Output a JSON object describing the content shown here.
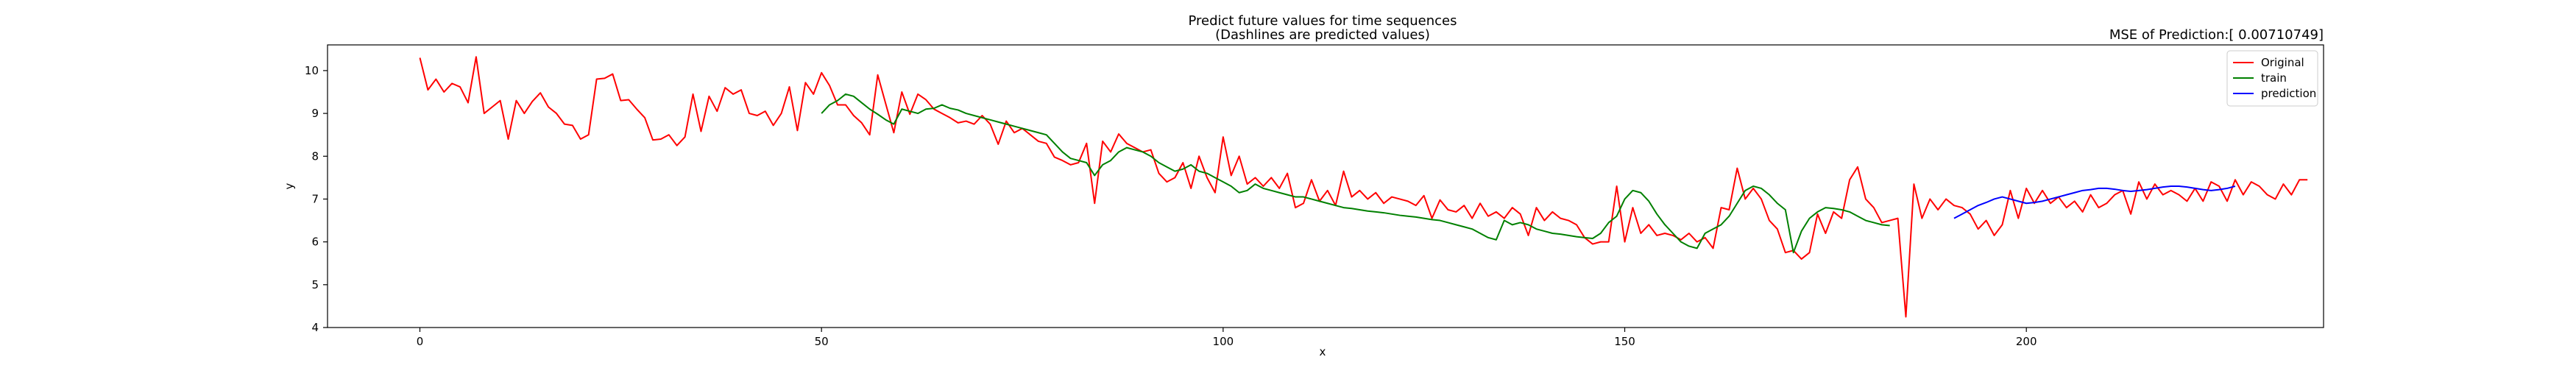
{
  "chart_data": {
    "type": "line",
    "title": "Predict future values for time sequences",
    "subtitle": "(Dashlines are predicted values)",
    "annotation": "MSE of Prediction:[ 0.00710749]",
    "xlabel": "x",
    "ylabel": "y",
    "xlim": [
      -11.5,
      237
    ],
    "ylim": [
      4,
      10.6
    ],
    "xticks": [
      0,
      50,
      100,
      150,
      200
    ],
    "yticks": [
      4,
      5,
      6,
      7,
      8,
      9,
      10
    ],
    "grid": false,
    "legend_position": "top-right",
    "series": [
      {
        "name": "Original",
        "color": "#ff0000",
        "x_start": 0,
        "values": [
          10.3,
          9.55,
          9.8,
          9.5,
          9.7,
          9.62,
          9.25,
          10.32,
          9.0,
          9.15,
          9.3,
          8.4,
          9.3,
          9.0,
          9.28,
          9.48,
          9.15,
          9.0,
          8.75,
          8.72,
          8.4,
          8.5,
          9.8,
          9.82,
          9.92,
          9.3,
          9.32,
          9.1,
          8.9,
          8.38,
          8.4,
          8.5,
          8.25,
          8.45,
          9.45,
          8.58,
          9.4,
          9.05,
          9.6,
          9.45,
          9.55,
          9.0,
          8.95,
          9.05,
          8.72,
          9.0,
          9.62,
          8.6,
          9.72,
          9.45,
          9.95,
          9.65,
          9.2,
          9.2,
          8.95,
          8.78,
          8.5,
          9.9,
          9.22,
          8.55,
          9.5,
          8.98,
          9.45,
          9.32,
          9.1,
          9.0,
          8.9,
          8.78,
          8.82,
          8.75,
          8.95,
          8.75,
          8.28,
          8.82,
          8.55,
          8.65,
          8.5,
          8.35,
          8.3,
          7.98,
          7.9,
          7.8,
          7.85,
          8.3,
          6.9,
          8.35,
          8.1,
          8.52,
          8.3,
          8.2,
          8.1,
          8.15,
          7.6,
          7.4,
          7.5,
          7.85,
          7.25,
          8.0,
          7.5,
          7.15,
          8.45,
          7.55,
          8.0,
          7.35,
          7.5,
          7.3,
          7.5,
          7.25,
          7.6,
          6.8,
          6.9,
          7.45,
          6.95,
          7.2,
          6.85,
          7.65,
          7.05,
          7.2,
          7.0,
          7.15,
          6.9,
          7.05,
          7.0,
          6.95,
          6.85,
          7.08,
          6.55,
          6.98,
          6.75,
          6.7,
          6.85,
          6.55,
          6.9,
          6.6,
          6.7,
          6.55,
          6.8,
          6.65,
          6.15,
          6.8,
          6.5,
          6.7,
          6.55,
          6.5,
          6.4,
          6.1,
          5.95,
          6.0,
          6.0,
          7.3,
          6.0,
          6.8,
          6.2,
          6.4,
          6.15,
          6.2,
          6.15,
          6.05,
          6.2,
          6.0,
          6.1,
          5.85,
          6.8,
          6.75,
          7.72,
          7.0,
          7.25,
          7.0,
          6.5,
          6.3,
          5.75,
          5.8,
          5.6,
          5.75,
          6.65,
          6.2,
          6.7,
          6.55,
          7.45,
          7.75,
          7.0,
          6.8,
          6.45,
          6.5,
          6.55,
          4.25,
          7.35,
          6.55,
          7.0,
          6.75,
          7.0,
          6.85,
          6.8,
          6.65,
          6.3,
          6.5,
          6.15,
          6.4,
          7.2,
          6.55,
          7.25,
          6.9,
          7.2,
          6.9,
          7.05,
          6.8,
          6.95,
          6.7,
          7.1,
          6.8,
          6.9,
          7.1,
          7.2,
          6.65,
          7.4,
          7.0,
          7.35,
          7.1,
          7.2,
          7.1,
          6.95,
          7.25,
          6.95,
          7.4,
          7.3,
          6.95,
          7.45,
          7.1,
          7.4,
          7.3,
          7.1,
          7.0,
          7.35,
          7.1,
          7.45,
          7.45
        ]
      },
      {
        "name": "train",
        "color": "#008000",
        "x_start": 50,
        "values": [
          9.0,
          9.2,
          9.3,
          9.45,
          9.4,
          9.25,
          9.1,
          8.98,
          8.85,
          8.75,
          9.1,
          9.05,
          9.0,
          9.1,
          9.12,
          9.2,
          9.12,
          9.08,
          9.0,
          8.95,
          8.9,
          8.85,
          8.8,
          8.75,
          8.7,
          8.65,
          8.6,
          8.55,
          8.5,
          8.3,
          8.1,
          7.95,
          7.9,
          7.85,
          7.55,
          7.8,
          7.9,
          8.1,
          8.2,
          8.15,
          8.1,
          8.0,
          7.85,
          7.75,
          7.65,
          7.7,
          7.8,
          7.65,
          7.6,
          7.5,
          7.4,
          7.3,
          7.15,
          7.2,
          7.35,
          7.25,
          7.2,
          7.15,
          7.1,
          7.05,
          7.05,
          7.0,
          6.95,
          6.9,
          6.85,
          6.8,
          6.78,
          6.75,
          6.72,
          6.7,
          6.68,
          6.65,
          6.62,
          6.6,
          6.58,
          6.55,
          6.52,
          6.5,
          6.45,
          6.4,
          6.35,
          6.3,
          6.2,
          6.1,
          6.05,
          6.5,
          6.4,
          6.45,
          6.4,
          6.3,
          6.25,
          6.2,
          6.18,
          6.15,
          6.12,
          6.1,
          6.08,
          6.2,
          6.45,
          6.6,
          7.0,
          7.2,
          7.15,
          6.95,
          6.65,
          6.4,
          6.2,
          6.0,
          5.9,
          5.85,
          6.2,
          6.3,
          6.4,
          6.6,
          6.9,
          7.2,
          7.3,
          7.25,
          7.1,
          6.9,
          6.75,
          5.75,
          6.25,
          6.55,
          6.7,
          6.8,
          6.78,
          6.75,
          6.7,
          6.6,
          6.5,
          6.45,
          6.4,
          6.38
        ]
      },
      {
        "name": "prediction",
        "color": "#0000ff",
        "x_start": 191,
        "values": [
          6.55,
          6.65,
          6.75,
          6.85,
          6.92,
          7.0,
          7.05,
          7.0,
          6.95,
          6.9,
          6.92,
          6.95,
          7.0,
          7.05,
          7.1,
          7.15,
          7.2,
          7.22,
          7.25,
          7.25,
          7.23,
          7.2,
          7.18,
          7.2,
          7.22,
          7.25,
          7.28,
          7.3,
          7.3,
          7.28,
          7.25,
          7.22,
          7.2,
          7.22,
          7.25,
          7.3
        ]
      }
    ]
  }
}
